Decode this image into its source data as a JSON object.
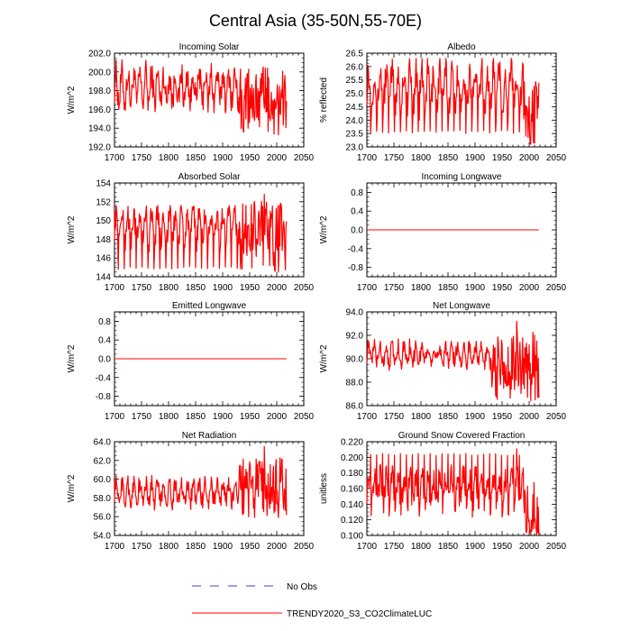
{
  "title": "Central Asia (35-50N,55-70E)",
  "colors": {
    "model": "#ff0000",
    "obs": "#3b3bd6",
    "axis": "#000000"
  },
  "legend": {
    "obs_label": "No Obs",
    "model_label": "TRENDY2020_S3_CO2ClimateLUC"
  },
  "chart_data": [
    {
      "type": "line",
      "title": "Incoming Solar",
      "xlabel": "",
      "ylabel": "W/m^2",
      "xlim": [
        1700,
        2050
      ],
      "xticks": [
        1700,
        1750,
        1800,
        1850,
        1900,
        1950,
        2000,
        2050
      ],
      "ylim": [
        192,
        202
      ],
      "yticks": [
        "192.0",
        "194.0",
        "196.0",
        "198.0",
        "200.0",
        "202.0"
      ],
      "series": [
        {
          "name": "TRENDY2020_S3_CO2ClimateLUC",
          "x_start": 1700,
          "x_end": 2018,
          "period": 11,
          "mean": 198.3,
          "amplitude": 2.2,
          "min": 195.6,
          "max": 201.9,
          "late_start": 1930,
          "late_mean": 197.3,
          "late_min": 193.3
        }
      ]
    },
    {
      "type": "line",
      "title": "Albedo",
      "xlabel": "",
      "ylabel": "% reflected",
      "xlim": [
        1700,
        2050
      ],
      "xticks": [
        1700,
        1750,
        1800,
        1850,
        1900,
        1950,
        2000,
        2050
      ],
      "ylim": [
        23.0,
        26.5
      ],
      "yticks": [
        "23.0",
        "23.5",
        "24.0",
        "24.5",
        "25.0",
        "25.5",
        "26.0",
        "26.5"
      ],
      "series": [
        {
          "name": "TRENDY2020_S3_CO2ClimateLUC",
          "x_start": 1700,
          "x_end": 2018,
          "period": 11,
          "mean": 25.2,
          "amplitude": 0.9,
          "min": 23.5,
          "max": 26.3,
          "spikes": "down",
          "late_start": 1990,
          "late_mean": 24.3,
          "late_min": 23.1
        }
      ]
    },
    {
      "type": "line",
      "title": "Absorbed Solar",
      "xlabel": "",
      "ylabel": "W/m^2",
      "xlim": [
        1700,
        2050
      ],
      "xticks": [
        1700,
        1750,
        1800,
        1850,
        1900,
        1950,
        2000,
        2050
      ],
      "ylim": [
        144,
        154
      ],
      "yticks": [
        "144",
        "146",
        "148",
        "150",
        "152",
        "154"
      ],
      "series": [
        {
          "name": "TRENDY2020_S3_CO2ClimateLUC",
          "x_start": 1700,
          "x_end": 2018,
          "period": 11,
          "mean": 149.3,
          "amplitude": 2.0,
          "min": 144.8,
          "max": 151.6,
          "spikes": "down",
          "late_start": 1930,
          "late_mean": 149.0,
          "late_min": 144.5,
          "peak": 152.8
        }
      ]
    },
    {
      "type": "line",
      "title": "Incoming Longwave",
      "xlabel": "",
      "ylabel": "W/m^2",
      "xlim": [
        1700,
        2050
      ],
      "xticks": [
        1700,
        1750,
        1800,
        1850,
        1900,
        1950,
        2000,
        2050
      ],
      "ylim": [
        -1.0,
        1.0
      ],
      "yticks": [
        "-0.8",
        "-0.4",
        "0.0",
        "0.4",
        "0.8"
      ],
      "series": [
        {
          "name": "TRENDY2020_S3_CO2ClimateLUC",
          "x_start": 1700,
          "x_end": 2018,
          "constant": 0.0
        }
      ]
    },
    {
      "type": "line",
      "title": "Emitted Longwave",
      "xlabel": "",
      "ylabel": "W/m^2",
      "xlim": [
        1700,
        2050
      ],
      "xticks": [
        1700,
        1750,
        1800,
        1850,
        1900,
        1950,
        2000,
        2050
      ],
      "ylim": [
        -1.0,
        1.0
      ],
      "yticks": [
        "-0.8",
        "-0.4",
        "0.0",
        "0.4",
        "0.8"
      ],
      "series": [
        {
          "name": "TRENDY2020_S3_CO2ClimateLUC",
          "x_start": 1700,
          "x_end": 2018,
          "constant": 0.0
        }
      ]
    },
    {
      "type": "line",
      "title": "Net Longwave",
      "xlabel": "",
      "ylabel": "W/m^2",
      "xlim": [
        1700,
        2050
      ],
      "xticks": [
        1700,
        1750,
        1800,
        1850,
        1900,
        1950,
        2000,
        2050
      ],
      "ylim": [
        86.0,
        94.0
      ],
      "yticks": [
        "86.0",
        "88.0",
        "90.0",
        "92.0",
        "94.0"
      ],
      "series": [
        {
          "name": "TRENDY2020_S3_CO2ClimateLUC",
          "x_start": 1700,
          "x_end": 2018,
          "period": 11,
          "mean": 90.4,
          "amplitude": 1.0,
          "min": 89.0,
          "max": 92.0,
          "late_start": 1930,
          "late_mean": 89.9,
          "late_min": 86.4,
          "peak": 93.2
        }
      ]
    },
    {
      "type": "line",
      "title": "Net Radiation",
      "xlabel": "",
      "ylabel": "W/m^2",
      "xlim": [
        1700,
        2050
      ],
      "xticks": [
        1700,
        1750,
        1800,
        1850,
        1900,
        1950,
        2000,
        2050
      ],
      "ylim": [
        54.0,
        64.0
      ],
      "yticks": [
        "54.0",
        "56.0",
        "58.0",
        "60.0",
        "62.0",
        "64.0"
      ],
      "series": [
        {
          "name": "TRENDY2020_S3_CO2ClimateLUC",
          "x_start": 1700,
          "x_end": 2018,
          "period": 11,
          "mean": 58.6,
          "amplitude": 1.4,
          "min": 56.2,
          "max": 60.4,
          "late_start": 1930,
          "late_mean": 59.6,
          "late_min": 55.9,
          "peak": 63.5
        }
      ]
    },
    {
      "type": "line",
      "title": "Ground Snow Covered Fraction",
      "xlabel": "",
      "ylabel": "unitless",
      "xlim": [
        1700,
        2050
      ],
      "xticks": [
        1700,
        1750,
        1800,
        1850,
        1900,
        1950,
        2000,
        2050
      ],
      "ylim": [
        0.1,
        0.22
      ],
      "yticks": [
        "0.100",
        "0.120",
        "0.140",
        "0.160",
        "0.180",
        "0.200",
        "0.220"
      ],
      "series": [
        {
          "name": "TRENDY2020_S3_CO2ClimateLUC",
          "x_start": 1700,
          "x_end": 2018,
          "period": 11,
          "mean": 0.158,
          "amplitude": 0.025,
          "min": 0.105,
          "max": 0.205,
          "spikes": "up",
          "late_start": 1990,
          "late_mean": 0.135,
          "late_min": 0.101,
          "peak": 0.211
        }
      ]
    }
  ]
}
